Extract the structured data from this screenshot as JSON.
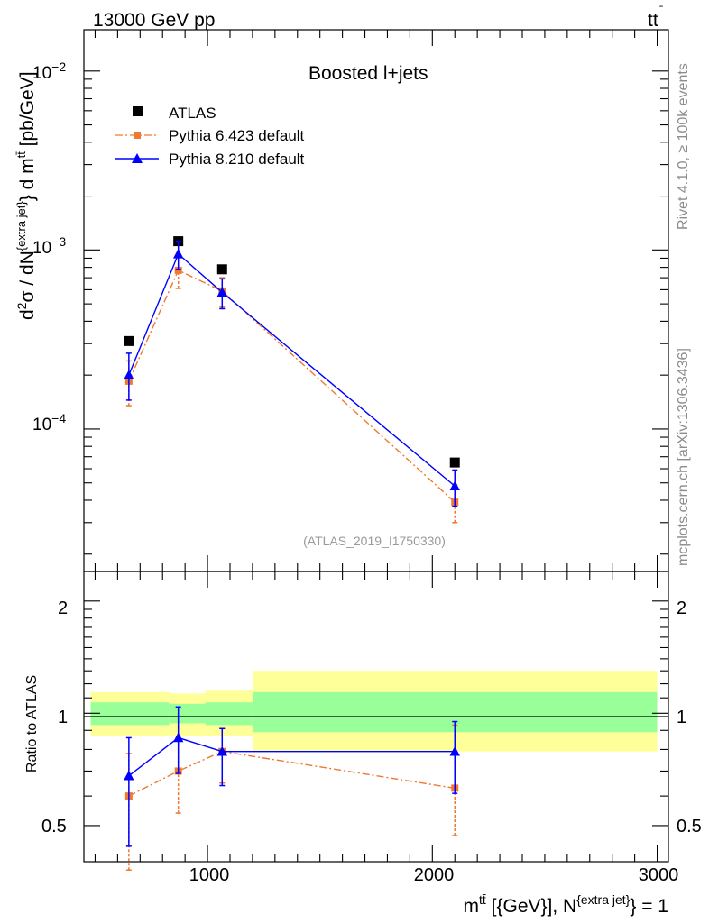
{
  "header": {
    "left": "13000 GeV pp",
    "right_main": "tt",
    "right_bar": "̄"
  },
  "side_labels": {
    "rivet": "Rivet 4.1.0, ≥ 100k events",
    "mcplots": "mcplots.cern.ch [arXiv:1306.3436]"
  },
  "upper": {
    "ylabel": "d²σ / dN^{extra jet} d m^{tt̄} [pb/GeV]",
    "analysis_tag": "(ATLAS_2019_I1750330)",
    "tick_labels": [
      "10^{-2}",
      "10^{-3}",
      "10^{-4}"
    ]
  },
  "lower": {
    "ylabel": "Ratio to ATLAS",
    "tick_labels": [
      "2",
      "1",
      "0.5"
    ]
  },
  "xaxis": {
    "label": "m^{tt̄} [{GeV}], N^{extra jet} = 1",
    "tick_labels": [
      "1000",
      "2000",
      "3000"
    ]
  },
  "chart_data": {
    "type": "scatter",
    "title": "Boosted l+jets",
    "xlabel": "m^{tt̄} [{GeV}], N^{extra jet} = 1",
    "ylabel": "d²σ / dN^{extra jet} d m^{tt̄} [pb/GeV]",
    "xlim": [
      450,
      3050
    ],
    "ylim_log": [
      1.6e-05,
      0.017
    ],
    "ratio_ylim": [
      0.4,
      2.4
    ],
    "ratio_ylabel": "Ratio to ATLAS",
    "bins": [
      [
        480,
        830
      ],
      [
        830,
        990
      ],
      [
        990,
        1200
      ],
      [
        1200,
        3000
      ]
    ],
    "x": [
      650,
      870,
      1065,
      2100
    ],
    "series": [
      {
        "name": "ATLAS",
        "marker": "square",
        "color": "#000000",
        "values": [
          0.00031,
          0.00112,
          0.00078,
          6.5e-05
        ],
        "band_1sigma": [
          [
            0.93,
            1.07
          ],
          [
            0.94,
            1.06
          ],
          [
            0.93,
            1.07
          ],
          [
            0.89,
            1.14
          ]
        ],
        "band_2sigma": [
          [
            0.87,
            1.14
          ],
          [
            0.87,
            1.13
          ],
          [
            0.87,
            1.15
          ],
          [
            0.79,
            1.3
          ]
        ]
      },
      {
        "name": "Pythia 6.423 default",
        "marker": "square",
        "line": "dashdot",
        "color": "#f07830",
        "values": [
          0.000185,
          0.00077,
          0.00059,
          3.9e-05
        ],
        "errors": [
          [
            0.000135,
            0.00024
          ],
          [
            0.00061,
            0.00093
          ],
          [
            0.00048,
            0.0007
          ],
          [
            3e-05,
            4.9e-05
          ]
        ],
        "ratio": [
          0.6,
          0.7,
          0.79,
          0.63
        ],
        "ratio_errors": [
          [
            0.38,
            0.78
          ],
          [
            0.54,
            0.86
          ],
          [
            0.65,
            0.91
          ],
          [
            0.47,
            0.93
          ]
        ]
      },
      {
        "name": "Pythia 8.210 default",
        "marker": "triangle",
        "line": "solid",
        "color": "#0000ff",
        "values": [
          0.0002,
          0.00095,
          0.00058,
          4.8e-05
        ],
        "errors": [
          [
            0.000145,
            0.000265
          ],
          [
            0.00078,
            0.00112
          ],
          [
            0.00047,
            0.00069
          ],
          [
            3.7e-05,
            5.9e-05
          ]
        ],
        "ratio": [
          0.68,
          0.86,
          0.79,
          0.79
        ],
        "ratio_errors": [
          [
            0.44,
            0.86
          ],
          [
            0.69,
            1.04
          ],
          [
            0.64,
            0.91
          ],
          [
            0.61,
            0.95
          ]
        ]
      }
    ]
  }
}
